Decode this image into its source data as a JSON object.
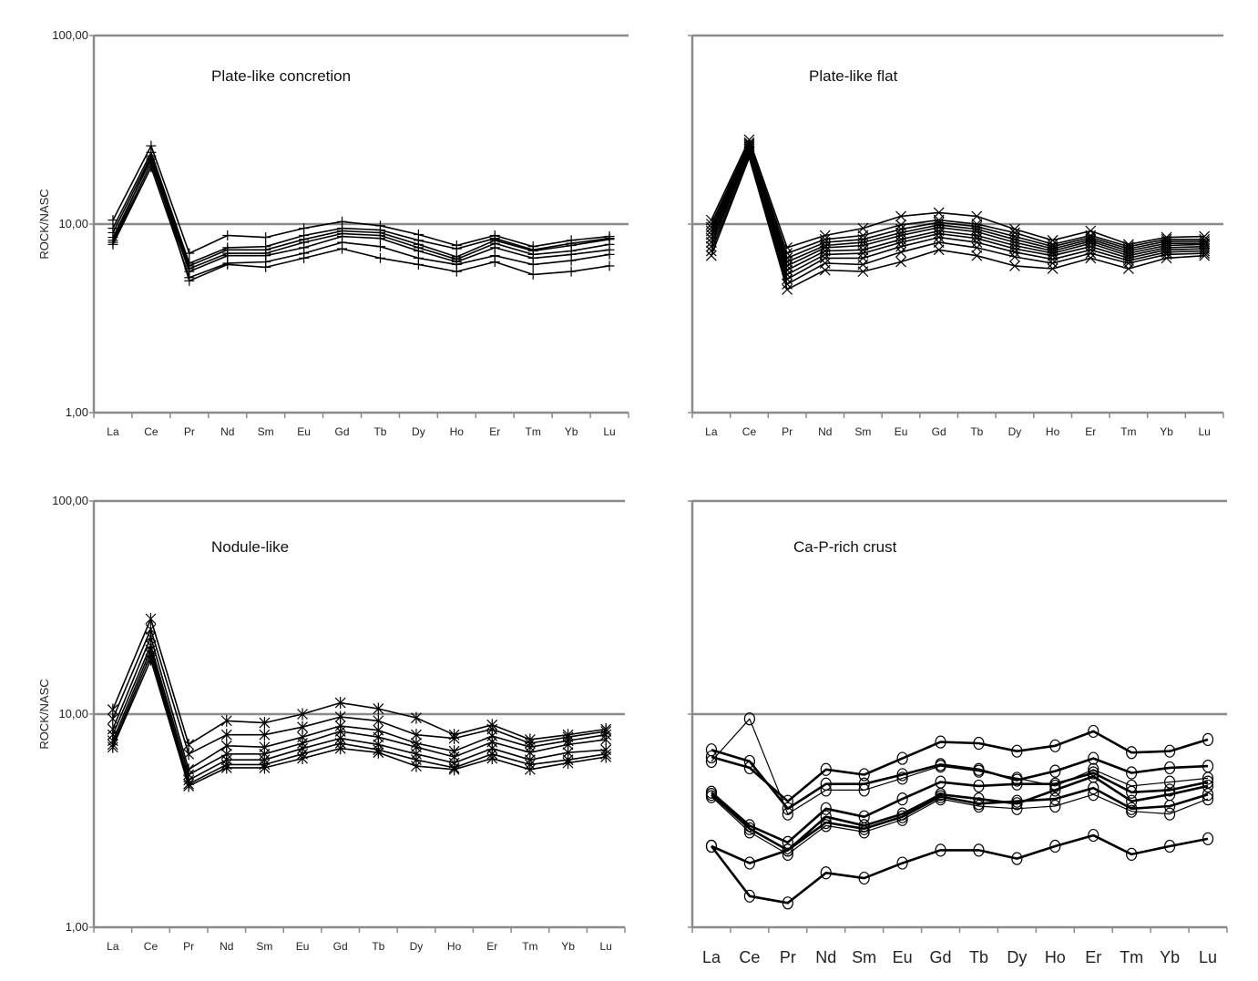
{
  "chart_data": [
    {
      "type": "line",
      "title": "Plate-like concretion",
      "ylabel": "ROCK/NASC",
      "yscale": "log",
      "ylim": [
        1,
        100
      ],
      "yticks": [
        "1,00",
        "10,00",
        "100,00"
      ],
      "categories": [
        "La",
        "Ce",
        "Pr",
        "Nd",
        "Sm",
        "Eu",
        "Gd",
        "Tb",
        "Dy",
        "Ho",
        "Er",
        "Tm",
        "Yb",
        "Lu"
      ],
      "marker": "plus",
      "series": [
        {
          "values": [
            10.5,
            26.0,
            7.0,
            8.7,
            8.5,
            9.5,
            10.3,
            9.8,
            8.8,
            7.7,
            8.7,
            7.6,
            8.2,
            8.6
          ]
        },
        {
          "values": [
            9.5,
            24.0,
            6.2,
            7.5,
            7.6,
            8.7,
            9.5,
            9.3,
            8.2,
            7.4,
            8.4,
            7.3,
            7.9,
            8.4
          ]
        },
        {
          "values": [
            9.0,
            23.0,
            6.0,
            7.3,
            7.3,
            8.3,
            9.2,
            9.0,
            7.8,
            6.7,
            8.2,
            7.2,
            7.7,
            8.3
          ]
        },
        {
          "values": [
            8.5,
            22.0,
            5.8,
            7.0,
            7.0,
            8.0,
            8.9,
            8.7,
            7.5,
            6.5,
            7.9,
            6.9,
            7.2,
            7.8
          ]
        },
        {
          "values": [
            8.0,
            21.0,
            5.6,
            6.8,
            6.8,
            7.5,
            8.6,
            8.4,
            7.2,
            6.3,
            7.5,
            6.6,
            6.9,
            7.3
          ]
        },
        {
          "values": [
            7.8,
            20.0,
            5.2,
            6.2,
            6.3,
            7.0,
            8.0,
            7.6,
            6.6,
            6.1,
            6.8,
            6.1,
            6.4,
            6.9
          ]
        },
        {
          "values": [
            8.2,
            22.5,
            5.0,
            6.1,
            5.9,
            6.6,
            7.4,
            6.6,
            6.1,
            5.6,
            6.3,
            5.4,
            5.6,
            6.0
          ]
        }
      ]
    },
    {
      "type": "line",
      "title": "Plate-like flat",
      "ylabel": "",
      "yscale": "log",
      "ylim": [
        1,
        100
      ],
      "yticks": [],
      "categories": [
        "La",
        "Ce",
        "Pr",
        "Nd",
        "Sm",
        "Eu",
        "Gd",
        "Tb",
        "Dy",
        "Ho",
        "Er",
        "Tm",
        "Yb",
        "Lu"
      ],
      "marker": "x",
      "series": [
        {
          "values": [
            10.5,
            28.0,
            7.5,
            8.7,
            9.5,
            11.0,
            11.5,
            11.0,
            9.4,
            8.2,
            9.2,
            7.8,
            8.5,
            8.6
          ]
        },
        {
          "values": [
            10.0,
            27.0,
            7.0,
            8.3,
            8.7,
            9.9,
            10.5,
            10.0,
            9.0,
            7.8,
            8.7,
            7.6,
            8.3,
            8.3
          ]
        },
        {
          "values": [
            9.6,
            26.5,
            6.6,
            8.0,
            8.3,
            9.4,
            10.2,
            9.7,
            8.6,
            7.6,
            8.5,
            7.4,
            8.1,
            8.1
          ]
        },
        {
          "values": [
            9.2,
            26.0,
            6.3,
            7.7,
            8.0,
            9.0,
            9.9,
            9.4,
            8.3,
            7.4,
            8.3,
            7.2,
            7.9,
            7.9
          ]
        },
        {
          "values": [
            8.8,
            25.5,
            6.0,
            7.5,
            7.7,
            8.7,
            9.6,
            9.1,
            8.0,
            7.2,
            8.1,
            7.0,
            7.7,
            7.8
          ]
        },
        {
          "values": [
            8.4,
            25.0,
            5.7,
            7.2,
            7.3,
            8.3,
            9.2,
            8.7,
            7.7,
            7.0,
            7.9,
            6.8,
            7.5,
            7.6
          ]
        },
        {
          "values": [
            8.0,
            24.5,
            5.4,
            6.9,
            7.0,
            8.0,
            8.9,
            8.4,
            7.4,
            6.8,
            7.6,
            6.6,
            7.3,
            7.4
          ]
        },
        {
          "values": [
            7.6,
            24.0,
            5.1,
            6.6,
            6.6,
            7.6,
            8.5,
            8.0,
            7.1,
            6.5,
            7.3,
            6.4,
            7.1,
            7.2
          ]
        },
        {
          "values": [
            7.2,
            23.0,
            4.8,
            6.2,
            6.1,
            7.1,
            8.0,
            7.5,
            6.7,
            6.2,
            7.0,
            6.2,
            6.9,
            7.0
          ]
        },
        {
          "values": [
            6.8,
            22.5,
            4.5,
            5.7,
            5.6,
            6.3,
            7.3,
            6.8,
            6.0,
            5.8,
            6.6,
            5.8,
            6.6,
            6.8
          ]
        }
      ]
    },
    {
      "type": "line",
      "title": "Nodule-like",
      "ylabel": "ROCK/NASC",
      "yscale": "log",
      "ylim": [
        1,
        100
      ],
      "yticks": [
        "1,00",
        "10,00",
        "100,00"
      ],
      "categories": [
        "La",
        "Ce",
        "Pr",
        "Nd",
        "Sm",
        "Eu",
        "Gd",
        "Tb",
        "Dy",
        "Ho",
        "Er",
        "Tm",
        "Yb",
        "Lu"
      ],
      "marker": "asterisk",
      "series": [
        {
          "values": [
            10.5,
            28.0,
            7.2,
            9.3,
            9.1,
            10.0,
            11.3,
            10.6,
            9.6,
            8.0,
            8.9,
            7.6,
            8.0,
            8.5
          ]
        },
        {
          "values": [
            9.5,
            25.0,
            6.5,
            8.0,
            8.0,
            8.7,
            9.7,
            9.3,
            8.0,
            7.7,
            8.5,
            7.3,
            7.8,
            8.3
          ]
        },
        {
          "values": [
            8.5,
            23.0,
            5.5,
            7.1,
            7.0,
            7.8,
            8.8,
            8.4,
            7.3,
            6.7,
            7.9,
            7.0,
            7.5,
            8.0
          ]
        },
        {
          "values": [
            8.0,
            21.0,
            5.2,
            6.5,
            6.5,
            7.3,
            8.3,
            7.8,
            7.0,
            6.3,
            7.4,
            6.6,
            7.2,
            7.6
          ]
        },
        {
          "values": [
            7.5,
            20.0,
            4.9,
            6.1,
            6.1,
            6.9,
            7.7,
            7.2,
            6.5,
            5.9,
            6.9,
            6.1,
            6.6,
            6.8
          ]
        },
        {
          "values": [
            7.2,
            19.0,
            4.7,
            5.8,
            5.8,
            6.5,
            7.3,
            6.8,
            6.1,
            5.6,
            6.5,
            5.8,
            6.1,
            6.5
          ]
        },
        {
          "values": [
            7.0,
            18.0,
            4.6,
            5.6,
            5.6,
            6.2,
            6.9,
            6.6,
            5.7,
            5.5,
            6.2,
            5.5,
            5.9,
            6.3
          ]
        }
      ]
    },
    {
      "type": "line",
      "title": "Ca-P-rich crust",
      "ylabel": "",
      "yscale": "log",
      "ylim": [
        1,
        100
      ],
      "yticks": [],
      "categories": [
        "La",
        "Ce",
        "Pr",
        "Nd",
        "Sm",
        "Eu",
        "Gd",
        "Tb",
        "Dy",
        "Ho",
        "Er",
        "Tm",
        "Yb",
        "Lu"
      ],
      "marker": "circle",
      "series": [
        {
          "values": [
            6.3,
            5.6,
            3.9,
            5.5,
            5.2,
            6.2,
            7.4,
            7.3,
            6.7,
            7.1,
            8.3,
            6.6,
            6.7,
            7.6
          ]
        },
        {
          "values": [
            6.8,
            6.0,
            3.6,
            4.7,
            4.7,
            5.2,
            5.8,
            5.5,
            4.9,
            5.4,
            6.2,
            5.3,
            5.6,
            5.7
          ]
        },
        {
          "values": [
            6.0,
            9.5,
            3.4,
            4.4,
            4.4,
            5.0,
            5.7,
            5.4,
            5.0,
            4.6,
            5.5,
            4.6,
            4.8,
            5.0
          ]
        },
        {
          "values": [
            4.3,
            3.0,
            2.5,
            3.6,
            3.3,
            4.0,
            4.8,
            4.6,
            4.7,
            4.7,
            5.3,
            4.3,
            4.4,
            4.8
          ]
        },
        {
          "values": [
            4.2,
            2.9,
            2.3,
            3.3,
            3.0,
            3.4,
            4.2,
            4.0,
            3.8,
            4.4,
            5.1,
            3.9,
            4.2,
            4.6
          ]
        },
        {
          "values": [
            4.1,
            2.8,
            2.2,
            3.0,
            2.8,
            3.2,
            4.0,
            3.7,
            3.6,
            3.7,
            4.2,
            3.5,
            3.4,
            4.0
          ]
        },
        {
          "values": [
            2.4,
            2.0,
            2.3,
            3.1,
            2.9,
            3.3,
            4.1,
            3.8,
            3.9,
            4.0,
            4.5,
            3.6,
            3.7,
            4.2
          ]
        },
        {
          "values": [
            2.4,
            1.4,
            1.3,
            1.8,
            1.7,
            2.0,
            2.3,
            2.3,
            2.1,
            2.4,
            2.7,
            2.2,
            2.4,
            2.6
          ]
        }
      ]
    }
  ]
}
